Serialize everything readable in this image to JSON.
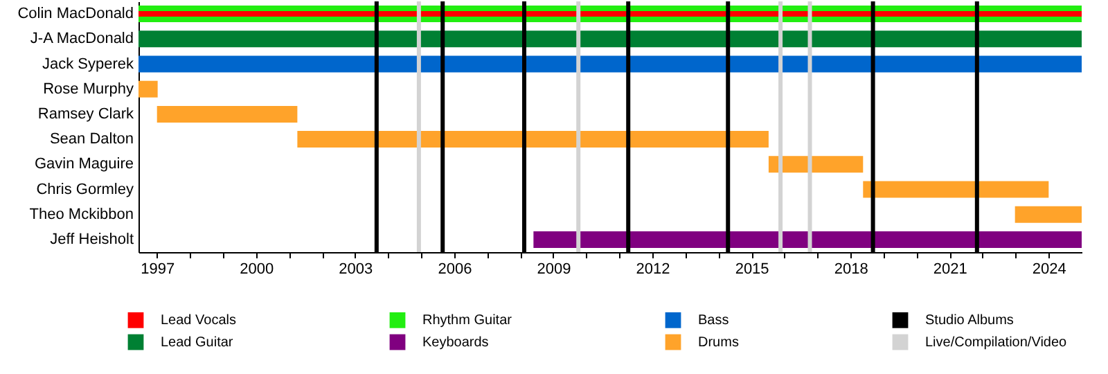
{
  "chart_data": {
    "type": "bar",
    "orientation": "horizontal",
    "categories": [
      "Colin MacDonald",
      "J-A MacDonald",
      "Jack Syperek",
      "Rose Murphy",
      "Ramsey Clark",
      "Sean Dalton",
      "Gavin Maguire",
      "Chris Gormley",
      "Theo Mckibbon",
      "Jeff Heisholt"
    ],
    "series": [
      {
        "name": "Lead Vocals",
        "color": "#ff0000",
        "base": [
          1996.44,
          null,
          null,
          null,
          null,
          null,
          null,
          null,
          null,
          null
        ],
        "values": [
          28.56,
          null,
          null,
          null,
          null,
          null,
          null,
          null,
          null,
          null
        ]
      },
      {
        "name": "Lead Guitar",
        "color": "#008033",
        "base": [
          null,
          1996.44,
          null,
          null,
          null,
          null,
          null,
          null,
          null,
          null
        ],
        "values": [
          null,
          28.56,
          null,
          null,
          null,
          null,
          null,
          null,
          null,
          null
        ]
      },
      {
        "name": "Rhythm Guitar",
        "color": "#22ee11",
        "base": [
          1996.44,
          null,
          null,
          null,
          null,
          null,
          null,
          null,
          null,
          null
        ],
        "values": [
          28.56,
          null,
          null,
          null,
          null,
          null,
          null,
          null,
          null,
          null
        ]
      },
      {
        "name": "Keyboards",
        "color": "#800080",
        "base": [
          null,
          null,
          null,
          null,
          null,
          null,
          null,
          null,
          null,
          2008.4
        ],
        "values": [
          null,
          null,
          null,
          null,
          null,
          null,
          null,
          null,
          null,
          16.6
        ]
      },
      {
        "name": "Bass",
        "color": "#0066cc",
        "base": [
          null,
          null,
          1996.44,
          null,
          null,
          null,
          null,
          null,
          null,
          null
        ],
        "values": [
          null,
          null,
          28.56,
          null,
          null,
          null,
          null,
          null,
          null,
          null
        ]
      },
      {
        "name": "Drums",
        "color": "#ffa32a",
        "base": [
          null,
          null,
          null,
          1996.44,
          1997.0,
          2001.25,
          2015.52,
          2018.38,
          2022.98,
          null
        ],
        "values": [
          null,
          null,
          null,
          0.58,
          4.25,
          14.27,
          2.86,
          5.62,
          2.02,
          null
        ]
      }
    ],
    "xlim": [
      1996.44,
      2025
    ],
    "xticks": [
      1997,
      {
        "value": 1998,
        "label": null
      },
      {
        "value": 1999,
        "label": null
      },
      2000,
      {
        "value": 2001,
        "label": null
      },
      {
        "value": 2002,
        "label": null
      },
      2003,
      {
        "value": 2004,
        "label": null
      },
      {
        "value": 2005,
        "label": null
      },
      2006,
      {
        "value": 2007,
        "label": null
      },
      {
        "value": 2008,
        "label": null
      },
      2009,
      {
        "value": 2010,
        "label": null
      },
      {
        "value": 2011,
        "label": null
      },
      2012,
      {
        "value": 2013,
        "label": null
      },
      {
        "value": 2014,
        "label": null
      },
      2015,
      {
        "value": 2016,
        "label": null
      },
      {
        "value": 2017,
        "label": null
      },
      2018,
      {
        "value": 2019,
        "label": null
      },
      {
        "value": 2020,
        "label": null
      },
      2021,
      {
        "value": 2022,
        "label": null
      },
      {
        "value": 2023,
        "label": null
      },
      2024
    ],
    "ref_lines": [
      {
        "axis": "x",
        "value": 2003.65,
        "label": "Studio Albums",
        "color": "#000000"
      },
      {
        "axis": "x",
        "value": 2005.65,
        "color": "#000000"
      },
      {
        "axis": "x",
        "value": 2008.12,
        "color": "#000000"
      },
      {
        "axis": "x",
        "value": 2011.27,
        "color": "#000000"
      },
      {
        "axis": "x",
        "value": 2014.29,
        "color": "#000000"
      },
      {
        "axis": "x",
        "value": 2018.68,
        "color": "#000000"
      },
      {
        "axis": "x",
        "value": 2021.83,
        "color": "#000000"
      },
      {
        "axis": "x",
        "value": 2004.93,
        "label": "Live/Compilation/Video",
        "color": "#d3d3d3"
      },
      {
        "axis": "x",
        "value": 2009.76,
        "color": "#d3d3d3"
      },
      {
        "axis": "x",
        "value": 2015.88,
        "color": "#d3d3d3"
      },
      {
        "axis": "x",
        "value": 2016.77,
        "color": "#d3d3d3"
      }
    ],
    "grid": false,
    "legend": "bottom"
  }
}
